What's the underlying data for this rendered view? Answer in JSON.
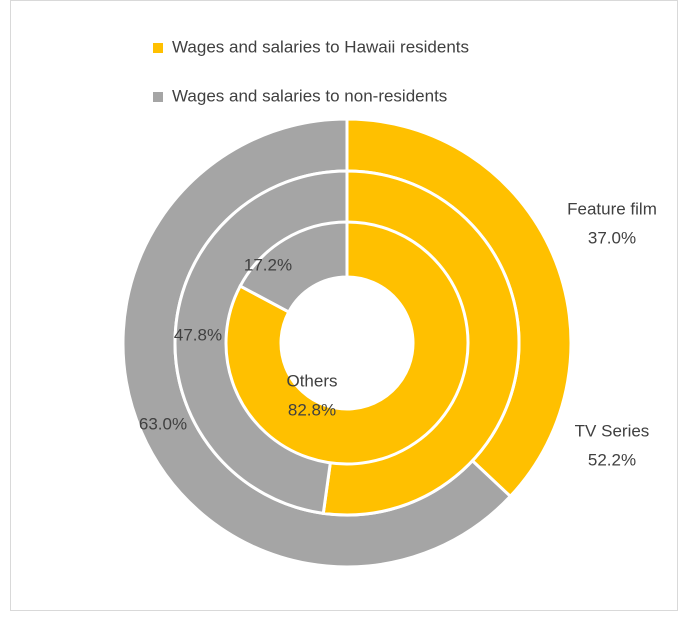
{
  "chart_data": {
    "type": "donut",
    "categories": [
      "Feature film",
      "TV Series",
      "Others"
    ],
    "series": [
      {
        "name": "Wages and salaries to Hawaii residents",
        "color": "#ffc000",
        "values": [
          37.0,
          52.2,
          82.8
        ],
        "value_labels": [
          "37.0%",
          "52.2%",
          "82.8%"
        ]
      },
      {
        "name": "Wages and salaries to non-residents",
        "color": "#a5a5a5",
        "values": [
          63.0,
          47.8,
          17.2
        ],
        "value_labels": [
          "63.0%",
          "47.8%",
          "17.2%"
        ]
      }
    ],
    "legend": "top"
  }
}
